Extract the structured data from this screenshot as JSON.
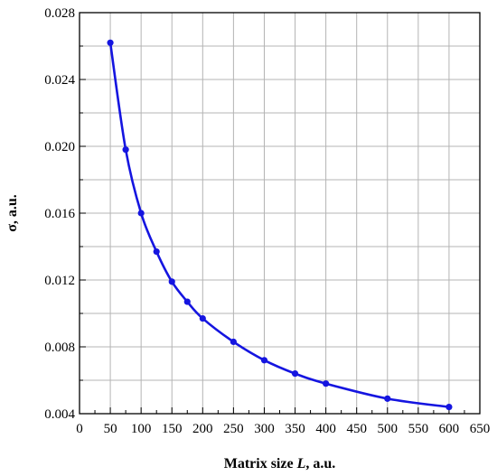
{
  "chart_data": {
    "type": "line",
    "title": "",
    "xlabel_prefix": "Matrix size ",
    "xlabel_var": "L",
    "xlabel_suffix": ", a.u.",
    "ylabel": "σ, a.u.",
    "xlim": [
      0,
      650
    ],
    "ylim": [
      0.004,
      0.028
    ],
    "grid": true,
    "line_color": "#1515e0",
    "x_ticks": [
      "0",
      "50",
      "100",
      "150",
      "200",
      "250",
      "300",
      "350",
      "400",
      "450",
      "500",
      "550",
      "600",
      "650"
    ],
    "y_ticks": [
      "0.004",
      "0.008",
      "0.012",
      "0.016",
      "0.020",
      "0.024",
      "0.028"
    ],
    "series": [
      {
        "x": [
          50,
          75,
          100,
          125,
          150,
          175,
          200,
          250,
          300,
          350,
          400,
          500,
          600
        ],
        "values": [
          0.0262,
          0.0198,
          0.016,
          0.0137,
          0.0119,
          0.0107,
          0.0097,
          0.0083,
          0.0072,
          0.0064,
          0.0058,
          0.0049,
          0.0044
        ]
      }
    ]
  }
}
